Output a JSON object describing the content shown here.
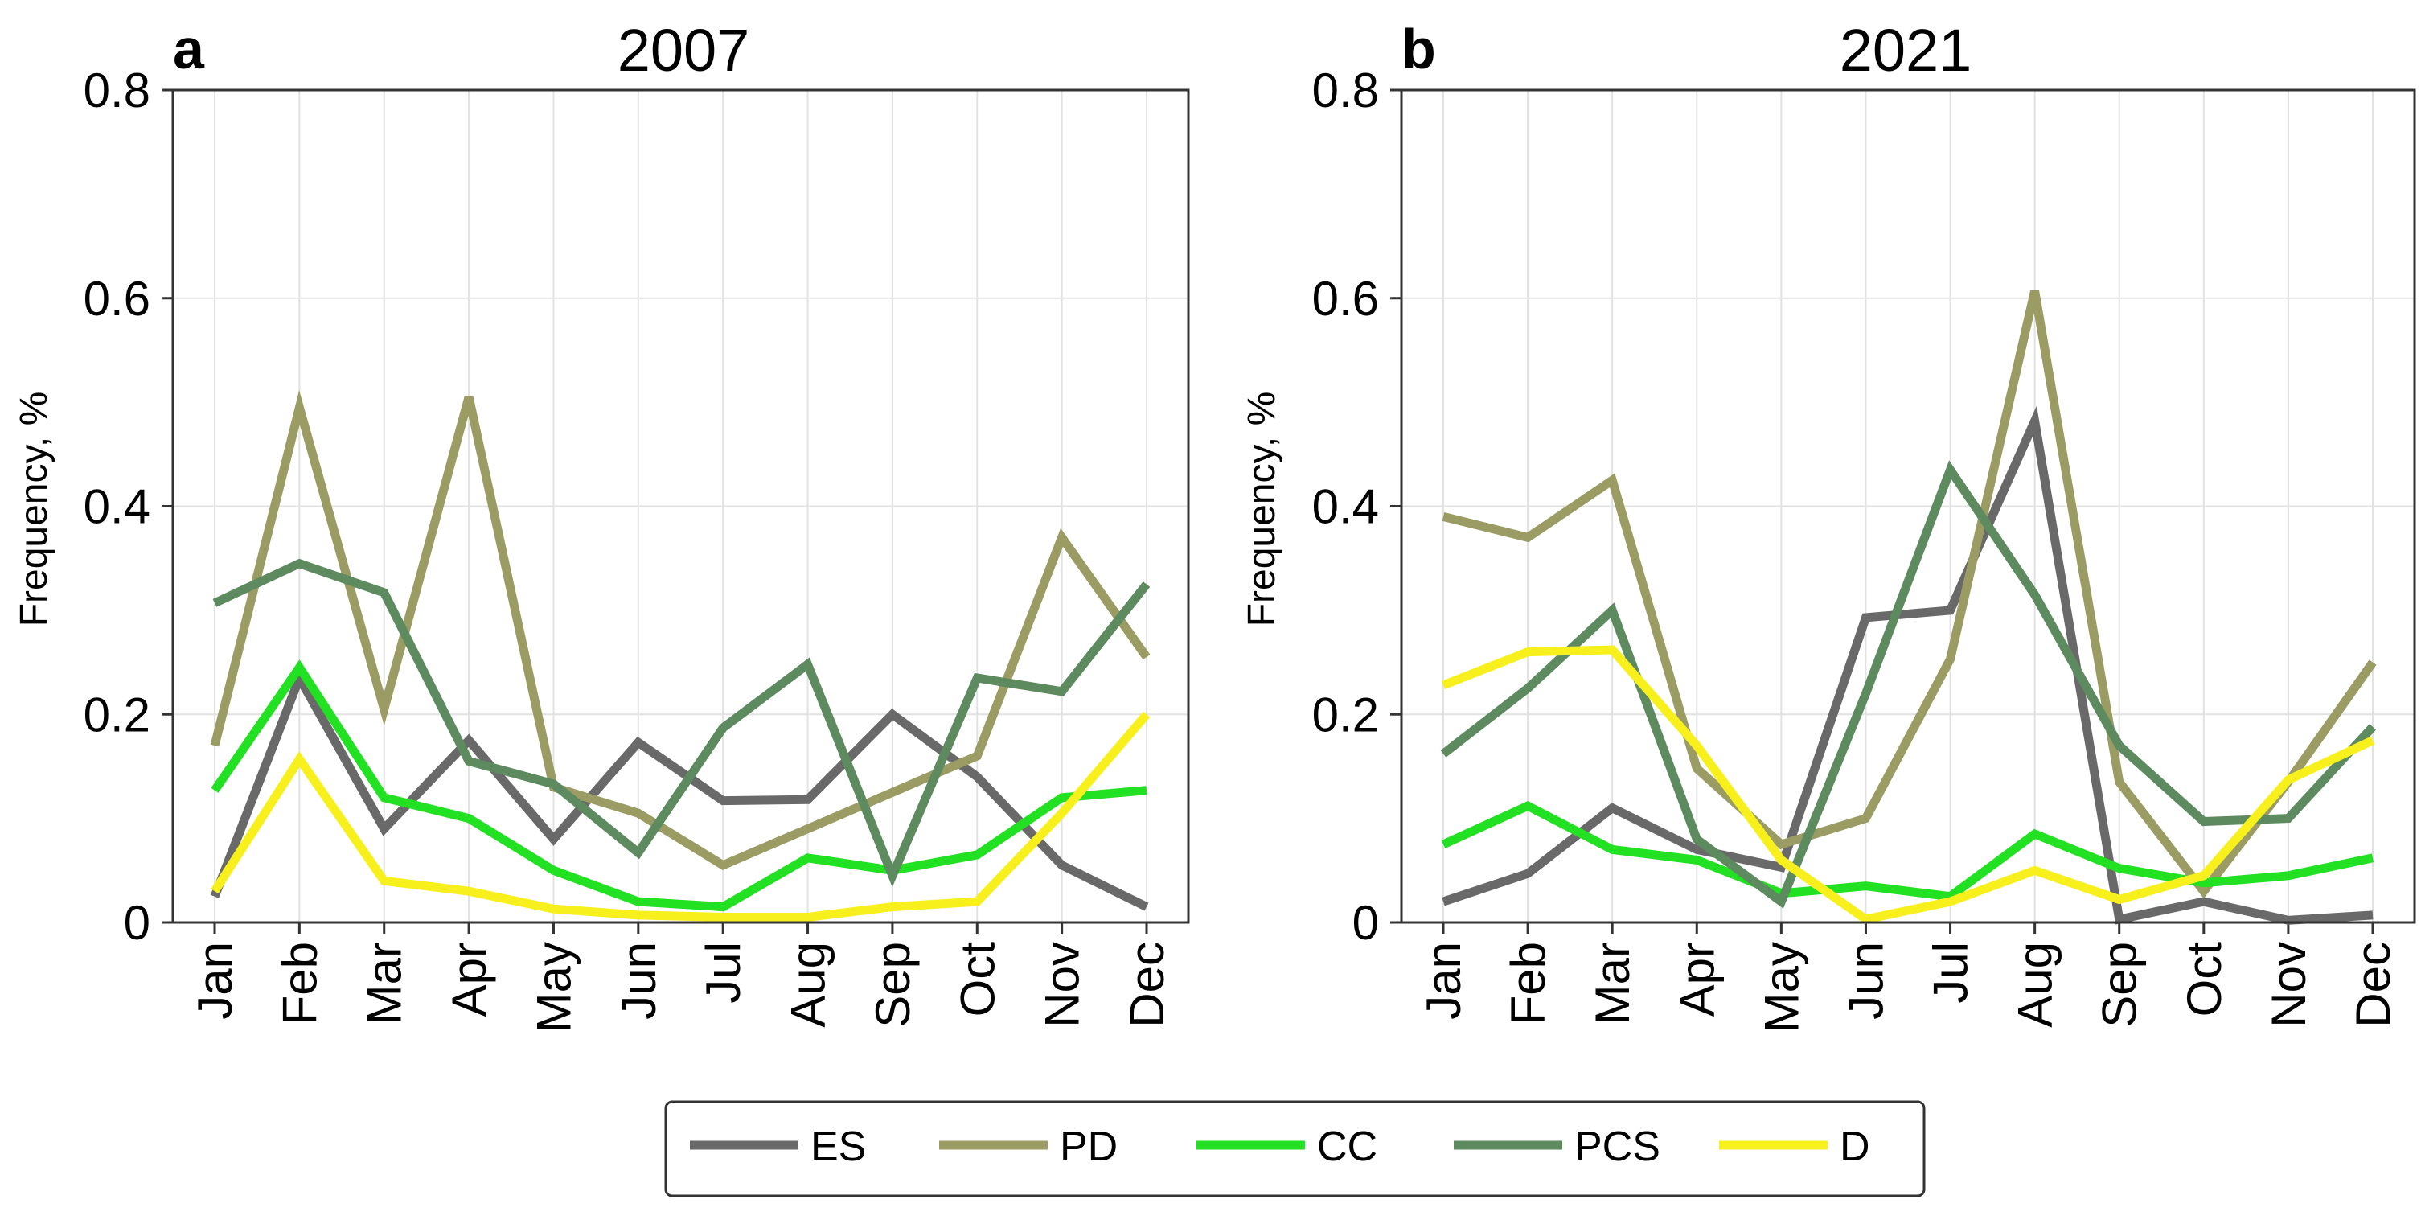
{
  "chart_data": [
    {
      "type": "line",
      "panel_label": "a",
      "title": "2007",
      "xlabel": "",
      "ylabel": "Frequency, %",
      "ylim": [
        0,
        0.8
      ],
      "yticks": [
        "0",
        "0.2",
        "0.4",
        "0.6",
        "0.8"
      ],
      "grid": true,
      "categories": [
        "Jan",
        "Feb",
        "Mar",
        "Apr",
        "May",
        "Jun",
        "Jul",
        "Aug",
        "Sep",
        "Oct",
        "Nov",
        "Dec"
      ],
      "series": [
        {
          "name": "ES",
          "color": "#696969",
          "values": [
            0.025,
            0.235,
            0.09,
            0.175,
            0.08,
            0.173,
            0.117,
            0.118,
            0.2,
            0.14,
            0.055,
            0.015
          ]
        },
        {
          "name": "PD",
          "color": "#9a9c64",
          "values": [
            0.17,
            0.495,
            0.205,
            0.505,
            0.13,
            0.105,
            0.055,
            0.09,
            0.125,
            0.16,
            0.37,
            0.255
          ]
        },
        {
          "name": "CC",
          "color": "#22e022",
          "values": [
            0.127,
            0.245,
            0.12,
            0.1,
            0.05,
            0.02,
            0.015,
            0.062,
            0.05,
            0.065,
            0.12,
            0.127
          ]
        },
        {
          "name": "PCS",
          "color": "#5d8b5f",
          "values": [
            0.307,
            0.345,
            0.317,
            0.155,
            0.133,
            0.067,
            0.187,
            0.248,
            0.045,
            0.235,
            0.222,
            0.325
          ]
        },
        {
          "name": "D",
          "color": "#f7f01c",
          "values": [
            0.03,
            0.157,
            0.04,
            0.03,
            0.013,
            0.007,
            0.005,
            0.005,
            0.015,
            0.02,
            0.105,
            0.2
          ]
        }
      ]
    },
    {
      "type": "line",
      "panel_label": "b",
      "title": "2021",
      "xlabel": "",
      "ylabel": "Frequency, %",
      "ylim": [
        0,
        0.8
      ],
      "yticks": [
        "0",
        "0.2",
        "0.4",
        "0.6",
        "0.8"
      ],
      "grid": true,
      "categories": [
        "Jan",
        "Feb",
        "Mar",
        "Apr",
        "May",
        "Jun",
        "Jul",
        "Aug",
        "Sep",
        "Oct",
        "Nov",
        "Dec"
      ],
      "series": [
        {
          "name": "ES",
          "color": "#696969",
          "values": [
            0.02,
            0.047,
            0.11,
            0.07,
            0.053,
            0.293,
            0.3,
            0.482,
            0.003,
            0.02,
            0.002,
            0.007
          ]
        },
        {
          "name": "PD",
          "color": "#9a9c64",
          "values": [
            0.39,
            0.37,
            0.425,
            0.148,
            0.075,
            0.1,
            0.253,
            0.607,
            0.135,
            0.03,
            0.135,
            0.25
          ]
        },
        {
          "name": "CC",
          "color": "#22e022",
          "values": [
            0.075,
            0.112,
            0.07,
            0.06,
            0.028,
            0.035,
            0.025,
            0.085,
            0.052,
            0.038,
            0.045,
            0.062
          ]
        },
        {
          "name": "PCS",
          "color": "#5d8b5f",
          "values": [
            0.162,
            0.225,
            0.3,
            0.08,
            0.02,
            0.22,
            0.435,
            0.315,
            0.17,
            0.097,
            0.1,
            0.188
          ]
        },
        {
          "name": "D",
          "color": "#f7f01c",
          "values": [
            0.228,
            0.26,
            0.262,
            0.17,
            0.06,
            0.003,
            0.02,
            0.05,
            0.022,
            0.045,
            0.137,
            0.175
          ]
        }
      ]
    }
  ],
  "legend": {
    "placement": "bottom-center",
    "items": [
      {
        "label": "ES",
        "color": "#696969"
      },
      {
        "label": "PD",
        "color": "#9a9c64"
      },
      {
        "label": "CC",
        "color": "#22e022"
      },
      {
        "label": "PCS",
        "color": "#5d8b5f"
      },
      {
        "label": "D",
        "color": "#f7f01c"
      }
    ]
  }
}
